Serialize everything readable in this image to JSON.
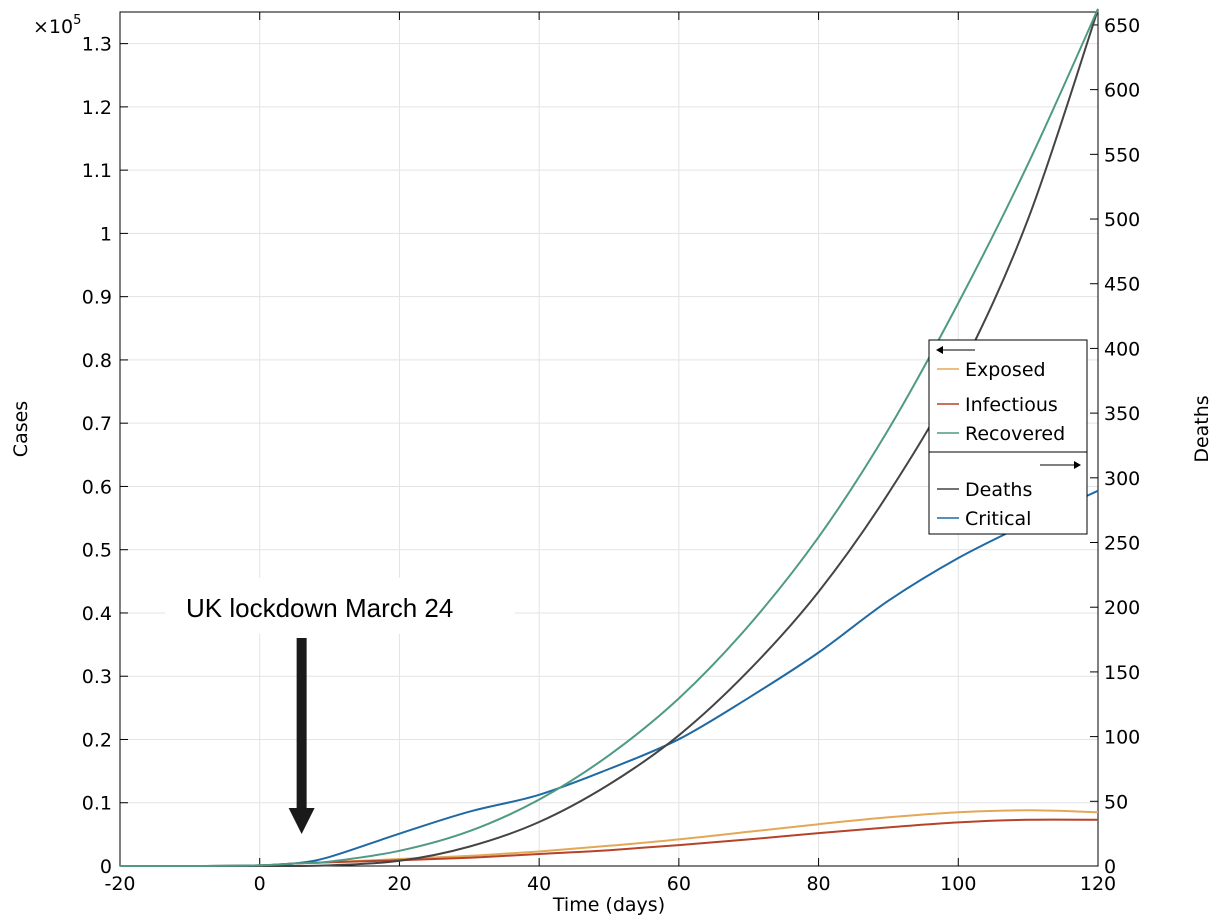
{
  "chart_data": {
    "type": "line",
    "xlabel": "Time (days)",
    "ylabel_left": "Cases",
    "ylabel_right": "Deaths",
    "left_axis_multiplier": "×10",
    "left_axis_multiplier_exp": "5",
    "xlim": [
      -20,
      120
    ],
    "ylim_left": [
      0,
      1.35
    ],
    "ylim_right": [
      0,
      660
    ],
    "x_ticks": [
      "-20",
      "0",
      "20",
      "40",
      "60",
      "80",
      "100",
      "120"
    ],
    "y_left_ticks": [
      "0",
      "0.1",
      "0.2",
      "0.3",
      "0.4",
      "0.5",
      "0.6",
      "0.7",
      "0.8",
      "0.9",
      "1",
      "1.1",
      "1.2",
      "1.3"
    ],
    "y_right_ticks": [
      "0",
      "50",
      "100",
      "150",
      "200",
      "250",
      "300",
      "350",
      "400",
      "450",
      "500",
      "550",
      "600",
      "650"
    ],
    "grid": true,
    "legend_position": "right",
    "x": [
      -20,
      -10,
      0,
      5,
      10,
      20,
      30,
      40,
      50,
      60,
      70,
      80,
      90,
      100,
      110,
      120
    ],
    "series": [
      {
        "name": "Exposed",
        "axis": "left",
        "color": "#e3a857",
        "values": [
          0,
          0,
          0.001,
          0.004,
          0.006,
          0.011,
          0.016,
          0.023,
          0.032,
          0.042,
          0.054,
          0.066,
          0.077,
          0.085,
          0.088,
          0.085
        ]
      },
      {
        "name": "Infectious",
        "axis": "left",
        "color": "#b5432a",
        "values": [
          0,
          0,
          0.001,
          0.004,
          0.006,
          0.009,
          0.013,
          0.019,
          0.025,
          0.033,
          0.042,
          0.052,
          0.061,
          0.069,
          0.073,
          0.073
        ]
      },
      {
        "name": "Recovered",
        "axis": "left",
        "color": "#4f9a84",
        "values": [
          0,
          0,
          0.001,
          0.004,
          0.007,
          0.024,
          0.055,
          0.105,
          0.175,
          0.265,
          0.38,
          0.52,
          0.69,
          0.89,
          1.11,
          1.355
        ]
      },
      {
        "name": "Deaths",
        "axis": "right",
        "color": "#444444",
        "values": [
          0,
          0,
          0,
          0,
          0.5,
          4,
          15,
          34,
          63,
          101,
          151,
          212,
          288,
          380,
          500,
          662
        ]
      },
      {
        "name": "Critical",
        "axis": "right",
        "color": "#1f6aa5",
        "values": [
          0,
          0,
          0.5,
          2,
          7,
          25,
          42,
          55,
          75,
          98,
          130,
          165,
          205,
          238,
          265,
          290
        ]
      }
    ],
    "annotation": {
      "text": "UK lockdown March 24",
      "x": 6
    }
  }
}
